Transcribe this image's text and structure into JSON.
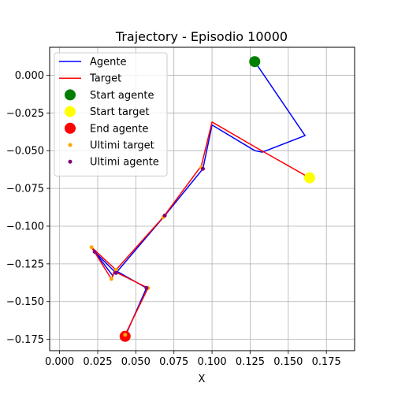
{
  "chart_data": {
    "type": "line",
    "title": "Trajectory - Episodio 10000",
    "xlabel": "X",
    "ylabel": "",
    "xlim": [
      -0.0065,
      0.1935
    ],
    "ylim": [
      -0.1825,
      0.0185
    ],
    "xticks": [
      0.0,
      0.025,
      0.05,
      0.075,
      0.1,
      0.125,
      0.15,
      0.175
    ],
    "xtick_labels": [
      "0.000",
      "0.025",
      "0.050",
      "0.075",
      "0.100",
      "0.125",
      "0.150",
      "0.175"
    ],
    "yticks": [
      0.0,
      -0.025,
      -0.05,
      -0.075,
      -0.1,
      -0.125,
      -0.15,
      -0.175
    ],
    "ytick_labels": [
      "0.000",
      "−0.025",
      "−0.050",
      "−0.075",
      "−0.100",
      "−0.125",
      "−0.150",
      "−0.175"
    ],
    "grid": true,
    "legend_position": "upper-left",
    "series": [
      {
        "name": "Agente",
        "kind": "line",
        "color": "#0000ff",
        "points": [
          [
            0.128,
            0.009
          ],
          [
            0.161,
            -0.04
          ],
          [
            0.133,
            -0.051
          ],
          [
            0.128,
            -0.05
          ],
          [
            0.1,
            -0.033
          ],
          [
            0.094,
            -0.062
          ],
          [
            0.069,
            -0.093
          ],
          [
            0.037,
            -0.131
          ],
          [
            0.023,
            -0.117
          ],
          [
            0.035,
            -0.133
          ],
          [
            0.036,
            -0.129
          ],
          [
            0.057,
            -0.141
          ],
          [
            0.043,
            -0.173
          ]
        ]
      },
      {
        "name": "Target",
        "kind": "line",
        "color": "#ff0000",
        "points": [
          [
            0.164,
            -0.068
          ],
          [
            0.129,
            -0.048
          ],
          [
            0.1,
            -0.031
          ],
          [
            0.093,
            -0.06
          ],
          [
            0.068,
            -0.094
          ],
          [
            0.037,
            -0.129
          ],
          [
            0.021,
            -0.114
          ],
          [
            0.034,
            -0.135
          ],
          [
            0.036,
            -0.13
          ],
          [
            0.058,
            -0.141
          ],
          [
            0.043,
            -0.172
          ]
        ]
      },
      {
        "name": "Start agente",
        "kind": "marker",
        "color": "#008000",
        "size": 7,
        "points": [
          [
            0.128,
            0.009
          ]
        ]
      },
      {
        "name": "Start target",
        "kind": "marker",
        "color": "#ffff00",
        "size": 7,
        "points": [
          [
            0.164,
            -0.068
          ]
        ]
      },
      {
        "name": "End agente",
        "kind": "marker",
        "color": "#ff0000",
        "size": 7,
        "points": [
          [
            0.043,
            -0.173
          ]
        ]
      },
      {
        "name": "Ultimi target",
        "kind": "marker",
        "color": "#ffa500",
        "size": 2.5,
        "points": [
          [
            0.093,
            -0.061
          ],
          [
            0.068,
            -0.094
          ],
          [
            0.037,
            -0.129
          ],
          [
            0.021,
            -0.114
          ],
          [
            0.034,
            -0.135
          ],
          [
            0.058,
            -0.141
          ],
          [
            0.043,
            -0.172
          ]
        ]
      },
      {
        "name": "Ultimi agente",
        "kind": "marker",
        "color": "#800080",
        "size": 2.5,
        "points": [
          [
            0.094,
            -0.062
          ],
          [
            0.069,
            -0.093
          ],
          [
            0.037,
            -0.131
          ],
          [
            0.023,
            -0.117
          ],
          [
            0.057,
            -0.141
          ]
        ]
      }
    ]
  }
}
